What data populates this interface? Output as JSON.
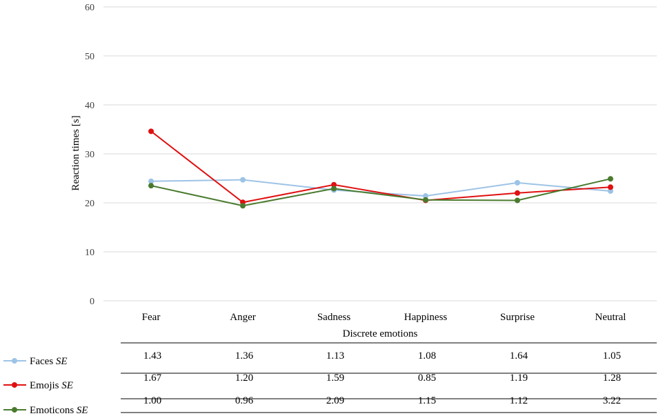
{
  "chart_data": {
    "type": "line",
    "xlabel": "Discrete emotions",
    "ylabel": "Reaction times [s]",
    "ylim": [
      0,
      60
    ],
    "yticks": [
      0,
      10,
      20,
      30,
      40,
      50,
      60
    ],
    "grid": "horizontal",
    "categories": [
      "Fear",
      "Anger",
      "Sadness",
      "Happiness",
      "Surprise",
      "Neutral"
    ],
    "series": [
      {
        "name": "Faces",
        "color": "#9DC3E6",
        "values": [
          24.4,
          24.7,
          22.6,
          21.4,
          24.1,
          22.4
        ],
        "se_label": "SE",
        "se": [
          "1.43",
          "1.36",
          "1.13",
          "1.08",
          "1.64",
          "1.05"
        ]
      },
      {
        "name": "Emojis",
        "color": "#E01010",
        "values": [
          34.6,
          20.1,
          23.7,
          20.5,
          22.0,
          23.2
        ],
        "se_label": "SE",
        "se": [
          "1.67",
          "1.20",
          "1.59",
          "0.85",
          "1.19",
          "1.28"
        ]
      },
      {
        "name": "Emoticons",
        "color": "#4A7A2E",
        "values": [
          23.5,
          19.4,
          22.9,
          20.6,
          20.5,
          24.9
        ],
        "se_label": "SE",
        "se": [
          "1.00",
          "0.96",
          "2.09",
          "1.15",
          "1.12",
          "3.22"
        ]
      }
    ]
  }
}
